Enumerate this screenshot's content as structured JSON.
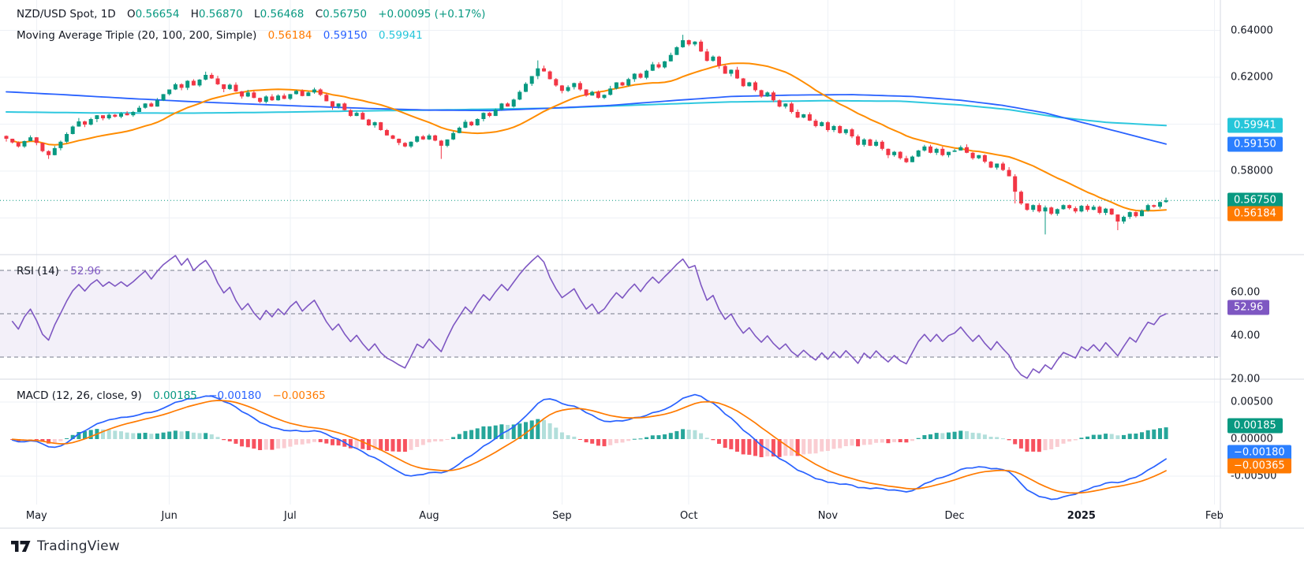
{
  "header": {
    "symbol": "NZD/USD Spot, 1D",
    "o_key": "O",
    "o": "0.56654",
    "h_key": "H",
    "h": "0.56870",
    "l_key": "L",
    "l": "0.56468",
    "c_key": "C",
    "c": "0.56750",
    "change": "+0.00095 (+0.17%)"
  },
  "ma_legend": {
    "name": "Moving Average Triple (20, 100, 200, Simple)",
    "ma20": "0.56184",
    "ma100": "0.59150",
    "ma200": "0.59941"
  },
  "rsi_legend": {
    "name": "RSI (14)",
    "value": "52.96"
  },
  "macd_legend": {
    "name": "MACD (12, 26, close, 9)",
    "hist": "0.00185",
    "macd": "−0.00180",
    "signal": "−0.00365"
  },
  "footer": {
    "brand": "TradingView"
  },
  "colors": {
    "up": "#089981",
    "down": "#F23645",
    "ma20": "#FF8C00",
    "ma100": "#2962FF",
    "ma200": "#2FC8DF",
    "badge_orange": "#FF7A00",
    "badge_blue": "#2B7FFF",
    "badge_cyan": "#26C6DA",
    "badge_green": "#089981",
    "badge_purple": "#7E57C2",
    "rsi": "#7E57C2",
    "rsi_band": "rgba(126,87,194,0.09)",
    "macd_line": "#2962FF",
    "signal_line": "#FF7A00",
    "hist_up": "#26A69A",
    "hist_up_weak": "#B2DFDB",
    "hist_dn": "#F7525F",
    "hist_dn_weak": "#FACDD2",
    "grid": "#EEF1F6",
    "border": "#D6DAE1",
    "dash": "#777D8C",
    "text": "#131722"
  },
  "axis": {
    "price_labels": [
      "0.64000",
      "0.62000",
      "0.58000"
    ],
    "price_badges": [
      {
        "text": "0.59941",
        "value": 0.59941,
        "color": "#26C6DA"
      },
      {
        "text": "0.59150",
        "value": 0.5915,
        "color": "#2B7FFF"
      },
      {
        "text": "0.56750",
        "value": 0.5675,
        "color": "#089981"
      },
      {
        "text": "0.56184",
        "value": 0.56184,
        "color": "#FF7A00"
      }
    ],
    "rsi_labels": [
      "60.00",
      "40.00",
      "20.00"
    ],
    "rsi_badge": {
      "text": "52.96",
      "value": 52.96,
      "color": "#7E57C2"
    },
    "macd_labels": [
      "0.00500",
      "0.00000",
      "-0.00500"
    ],
    "macd_badges": [
      {
        "text": "0.00185",
        "value": 0.00185,
        "color": "#089981"
      },
      {
        "text": "−0.00180",
        "value": -0.0018,
        "color": "#2B7FFF"
      },
      {
        "text": "−0.00365",
        "value": -0.00365,
        "color": "#FF7A00"
      }
    ]
  },
  "time_axis": {
    "months": [
      {
        "label": "May",
        "i": 5
      },
      {
        "label": "Jun",
        "i": 27
      },
      {
        "label": "Jul",
        "i": 47
      },
      {
        "label": "Aug",
        "i": 70
      },
      {
        "label": "Sep",
        "i": 92
      },
      {
        "label": "Oct",
        "i": 113
      },
      {
        "label": "Nov",
        "i": 136
      },
      {
        "label": "Dec",
        "i": 157
      },
      {
        "label": "2025",
        "i": 178,
        "bold": true
      },
      {
        "label": "Feb",
        "i": 200
      }
    ]
  },
  "chart_data": {
    "type": "candlestick+indicators",
    "symbol": "NZD/USD Spot",
    "interval": "1D",
    "last_ohlc": {
      "open": 0.56654,
      "high": 0.5687,
      "low": 0.56468,
      "close": 0.5675,
      "change": "+0.00095 (+0.17%)"
    },
    "last_close": 0.5675,
    "price_gridlines": [
      0.64,
      0.62,
      0.6,
      0.58,
      0.56
    ],
    "indicators": {
      "ma_triple": {
        "windows": [
          20,
          100,
          200
        ],
        "type": "Simple",
        "last": [
          0.56184,
          0.5915,
          0.59941
        ]
      },
      "rsi": {
        "window": 14,
        "last": 52.96,
        "levels": [
          70,
          50,
          30
        ],
        "ylim": [
          20,
          80
        ]
      },
      "macd": {
        "fast": 12,
        "slow": 26,
        "source": "close",
        "signal": 9,
        "last": {
          "hist": 0.00185,
          "macd": -0.0018,
          "signal": -0.00365
        },
        "gridlines": [
          0.005,
          0,
          -0.005
        ]
      }
    },
    "closes": [
      0.5938,
      0.5922,
      0.5905,
      0.5928,
      0.5944,
      0.592,
      0.5885,
      0.5868,
      0.5898,
      0.5925,
      0.5958,
      0.599,
      0.6012,
      0.5998,
      0.6022,
      0.6038,
      0.6025,
      0.604,
      0.6032,
      0.6046,
      0.6038,
      0.6052,
      0.607,
      0.6088,
      0.6075,
      0.6102,
      0.6128,
      0.6148,
      0.617,
      0.6155,
      0.6185,
      0.6165,
      0.619,
      0.621,
      0.6195,
      0.617,
      0.615,
      0.6168,
      0.614,
      0.6118,
      0.6135,
      0.6112,
      0.6095,
      0.6118,
      0.6102,
      0.6122,
      0.6108,
      0.6128,
      0.6142,
      0.612,
      0.6135,
      0.6148,
      0.6125,
      0.6098,
      0.6075,
      0.6088,
      0.606,
      0.6035,
      0.6048,
      0.602,
      0.5995,
      0.6008,
      0.5975,
      0.5952,
      0.5938,
      0.592,
      0.5905,
      0.5925,
      0.5948,
      0.5935,
      0.5952,
      0.593,
      0.5908,
      0.5935,
      0.5962,
      0.5985,
      0.601,
      0.5995,
      0.6022,
      0.6048,
      0.6035,
      0.6062,
      0.6088,
      0.6075,
      0.6105,
      0.6138,
      0.6172,
      0.6205,
      0.6238,
      0.6225,
      0.6192,
      0.6165,
      0.6142,
      0.6158,
      0.6175,
      0.6148,
      0.6122,
      0.6138,
      0.6112,
      0.6125,
      0.6152,
      0.6178,
      0.6165,
      0.6192,
      0.6215,
      0.6198,
      0.6228,
      0.6255,
      0.6242,
      0.6268,
      0.6295,
      0.6328,
      0.6358,
      0.634,
      0.6352,
      0.631,
      0.627,
      0.6288,
      0.6248,
      0.6215,
      0.6232,
      0.6195,
      0.6162,
      0.6178,
      0.6145,
      0.6118,
      0.6135,
      0.6102,
      0.6075,
      0.6088,
      0.6052,
      0.6028,
      0.6042,
      0.6015,
      0.5992,
      0.6008,
      0.5975,
      0.5992,
      0.5962,
      0.5978,
      0.5948,
      0.5912,
      0.5935,
      0.5908,
      0.5925,
      0.5895,
      0.5868,
      0.5882,
      0.5855,
      0.5838,
      0.5862,
      0.5888,
      0.5905,
      0.5878,
      0.5895,
      0.5868,
      0.5882,
      0.5888,
      0.5902,
      0.5878,
      0.5855,
      0.5868,
      0.584,
      0.5815,
      0.5832,
      0.5805,
      0.5778,
      0.5712,
      0.5662,
      0.5635,
      0.5655,
      0.5628,
      0.5645,
      0.5618,
      0.5638,
      0.5655,
      0.5642,
      0.5628,
      0.5652,
      0.5635,
      0.5648,
      0.5622,
      0.564,
      0.5615,
      0.5585,
      0.5605,
      0.5625,
      0.5608,
      0.5632,
      0.5655,
      0.5648,
      0.5668,
      0.5675
    ],
    "wick_low": {
      "7": 0.5852,
      "72": 0.5852,
      "167": 0.5662,
      "172": 0.553,
      "184": 0.5548
    },
    "wick_high": {
      "33": 0.6224,
      "88": 0.6272,
      "112": 0.6381,
      "192": 0.5687
    },
    "ma100_points": [
      [
        0,
        0.6138
      ],
      [
        10,
        0.6125
      ],
      [
        20,
        0.611
      ],
      [
        30,
        0.6097
      ],
      [
        40,
        0.6086
      ],
      [
        50,
        0.6076
      ],
      [
        60,
        0.6067
      ],
      [
        70,
        0.606
      ],
      [
        80,
        0.6058
      ],
      [
        90,
        0.6068
      ],
      [
        100,
        0.608
      ],
      [
        110,
        0.61
      ],
      [
        120,
        0.6118
      ],
      [
        130,
        0.6124
      ],
      [
        140,
        0.6126
      ],
      [
        150,
        0.6118
      ],
      [
        158,
        0.6102
      ],
      [
        165,
        0.608
      ],
      [
        172,
        0.6048
      ],
      [
        180,
        0.5995
      ],
      [
        186,
        0.5955
      ],
      [
        192,
        0.5915
      ]
    ],
    "ma200_points": [
      [
        0,
        0.6052
      ],
      [
        15,
        0.6048
      ],
      [
        30,
        0.6047
      ],
      [
        45,
        0.6051
      ],
      [
        60,
        0.6057
      ],
      [
        75,
        0.6062
      ],
      [
        90,
        0.6068
      ],
      [
        105,
        0.6082
      ],
      [
        120,
        0.6095
      ],
      [
        135,
        0.61
      ],
      [
        148,
        0.6098
      ],
      [
        158,
        0.6082
      ],
      [
        166,
        0.6062
      ],
      [
        174,
        0.603
      ],
      [
        182,
        0.6008
      ],
      [
        192,
        0.5994
      ]
    ]
  }
}
